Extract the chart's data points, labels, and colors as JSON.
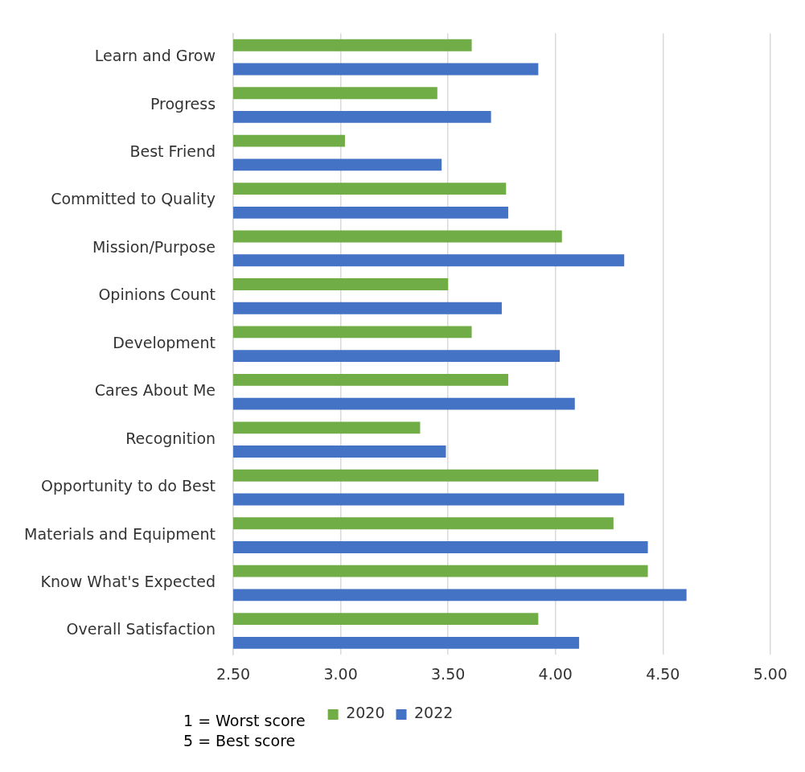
{
  "chart_data": {
    "type": "bar",
    "orientation": "horizontal",
    "categories": [
      "Learn and Grow",
      "Progress",
      "Best Friend",
      "Committed to Quality",
      "Mission/Purpose",
      "Opinions Count",
      "Development",
      "Cares About Me",
      "Recognition",
      "Opportunity to do Best",
      "Materials and Equipment",
      "Know What's Expected",
      "Overall Satisfaction"
    ],
    "series": [
      {
        "name": "2020",
        "color": "#70ad47",
        "values": [
          3.61,
          3.45,
          3.02,
          3.77,
          4.03,
          3.5,
          3.61,
          3.78,
          3.37,
          4.2,
          4.27,
          4.43,
          3.92
        ]
      },
      {
        "name": "2022",
        "color": "#4472c4",
        "values": [
          3.92,
          3.7,
          3.47,
          3.78,
          4.32,
          3.75,
          4.02,
          4.09,
          3.49,
          4.32,
          4.43,
          4.61,
          4.11
        ]
      }
    ],
    "xlim": [
      2.5,
      5
    ],
    "xticks": [
      {
        "value": 2.5,
        "label": "2.50"
      },
      {
        "value": 3,
        "label": "3.00"
      },
      {
        "value": 3.5,
        "label": "3.50"
      },
      {
        "value": 4,
        "label": "4.00"
      },
      {
        "value": 4.5,
        "label": "4.50"
      },
      {
        "value": 5,
        "label": "5.00"
      }
    ],
    "grid": "x",
    "legend": "bottom",
    "annotations": [
      "1 = Worst score",
      "5 = Best score"
    ]
  }
}
